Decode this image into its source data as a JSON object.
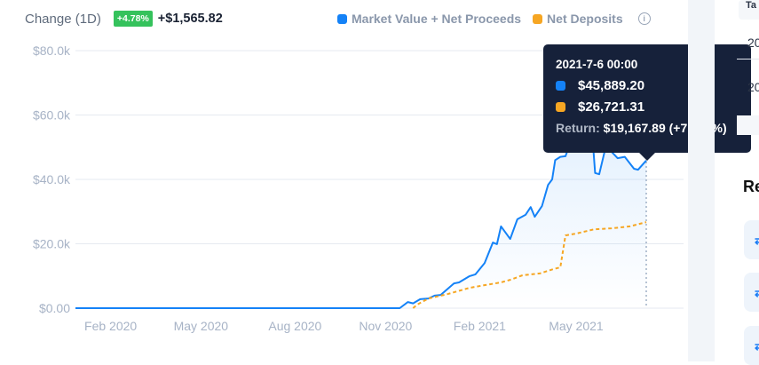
{
  "header": {
    "label": "Change (1D)",
    "badge": "+4.78%",
    "change": "+$1,565.82"
  },
  "legend": {
    "items": [
      {
        "label": "Market Value + Net Proceeds",
        "color": "#1482f7"
      },
      {
        "label": "Net Deposits",
        "color": "#f6a623"
      }
    ],
    "info_icon": "info-circle-icon"
  },
  "tooltip": {
    "date": "2021-7-6 00:00",
    "market_value": "$45,889.20",
    "net_deposits": "$26,721.31",
    "return_label": "Return:",
    "return_value": "$19,167.89 (+71.73%)"
  },
  "sidebar": {
    "header": "Ta",
    "cells": [
      "20",
      "20"
    ],
    "heading": "Re"
  },
  "chart_data": {
    "type": "line",
    "ylim": [
      0,
      80000
    ],
    "yticks": [
      "$0.00",
      "$20.0k",
      "$40.0k",
      "$60.0k",
      "$80.0k"
    ],
    "xlim": [
      "2019-12-26",
      "2021-07-06"
    ],
    "xticks": [
      {
        "label": "Feb 2020",
        "date": "2020-02-01"
      },
      {
        "label": "May 2020",
        "date": "2020-05-01"
      },
      {
        "label": "Aug 2020",
        "date": "2020-08-01"
      },
      {
        "label": "Nov 2020",
        "date": "2020-11-01"
      },
      {
        "label": "Feb 2021",
        "date": "2021-02-01"
      },
      {
        "label": "May 2021",
        "date": "2021-05-01"
      }
    ],
    "grid": true,
    "legend_position": "top",
    "series": [
      {
        "name": "Market Value + Net Proceeds",
        "color": "#1482f7",
        "style": "solid",
        "points": [
          [
            "2019-12-26",
            0
          ],
          [
            "2020-11-07",
            0
          ],
          [
            "2020-11-15",
            1900
          ],
          [
            "2020-11-20",
            1500
          ],
          [
            "2020-11-27",
            2800
          ],
          [
            "2020-12-05",
            3000
          ],
          [
            "2020-12-11",
            3900
          ],
          [
            "2020-12-17",
            4100
          ],
          [
            "2020-12-30",
            7700
          ],
          [
            "2021-01-04",
            8000
          ],
          [
            "2021-01-14",
            9900
          ],
          [
            "2021-01-20",
            10500
          ],
          [
            "2021-01-29",
            14000
          ],
          [
            "2021-02-06",
            20400
          ],
          [
            "2021-02-10",
            19900
          ],
          [
            "2021-02-14",
            25400
          ],
          [
            "2021-02-23",
            21500
          ],
          [
            "2021-03-02",
            27600
          ],
          [
            "2021-03-10",
            29000
          ],
          [
            "2021-03-15",
            31400
          ],
          [
            "2021-03-19",
            28400
          ],
          [
            "2021-03-26",
            31700
          ],
          [
            "2021-04-01",
            38300
          ],
          [
            "2021-04-05",
            40000
          ],
          [
            "2021-04-08",
            46000
          ],
          [
            "2021-04-13",
            47000
          ],
          [
            "2021-04-18",
            47200
          ],
          [
            "2021-04-27",
            55000
          ],
          [
            "2021-05-04",
            63000
          ],
          [
            "2021-05-10",
            66000
          ],
          [
            "2021-05-14",
            55000
          ],
          [
            "2021-05-17",
            42000
          ],
          [
            "2021-05-21",
            41600
          ],
          [
            "2021-05-27",
            49600
          ],
          [
            "2021-06-02",
            48600
          ],
          [
            "2021-06-08",
            46600
          ],
          [
            "2021-06-15",
            47000
          ],
          [
            "2021-06-24",
            43300
          ],
          [
            "2021-06-28",
            43000
          ],
          [
            "2021-07-06",
            45889.2
          ]
        ]
      },
      {
        "name": "Net Deposits",
        "color": "#f6a623",
        "style": "dashed",
        "points": [
          [
            "2020-11-20",
            0
          ],
          [
            "2020-11-24",
            1100
          ],
          [
            "2020-12-05",
            3000
          ],
          [
            "2020-12-24",
            4400
          ],
          [
            "2021-01-14",
            6300
          ],
          [
            "2021-01-30",
            7200
          ],
          [
            "2021-02-14",
            8000
          ],
          [
            "2021-02-23",
            8800
          ],
          [
            "2021-03-07",
            10200
          ],
          [
            "2021-03-24",
            10800
          ],
          [
            "2021-04-06",
            12100
          ],
          [
            "2021-04-13",
            12700
          ],
          [
            "2021-04-18",
            22600
          ],
          [
            "2021-04-29",
            23200
          ],
          [
            "2021-05-16",
            24500
          ],
          [
            "2021-06-02",
            24800
          ],
          [
            "2021-06-20",
            25400
          ],
          [
            "2021-07-06",
            26721.31
          ]
        ]
      }
    ]
  }
}
